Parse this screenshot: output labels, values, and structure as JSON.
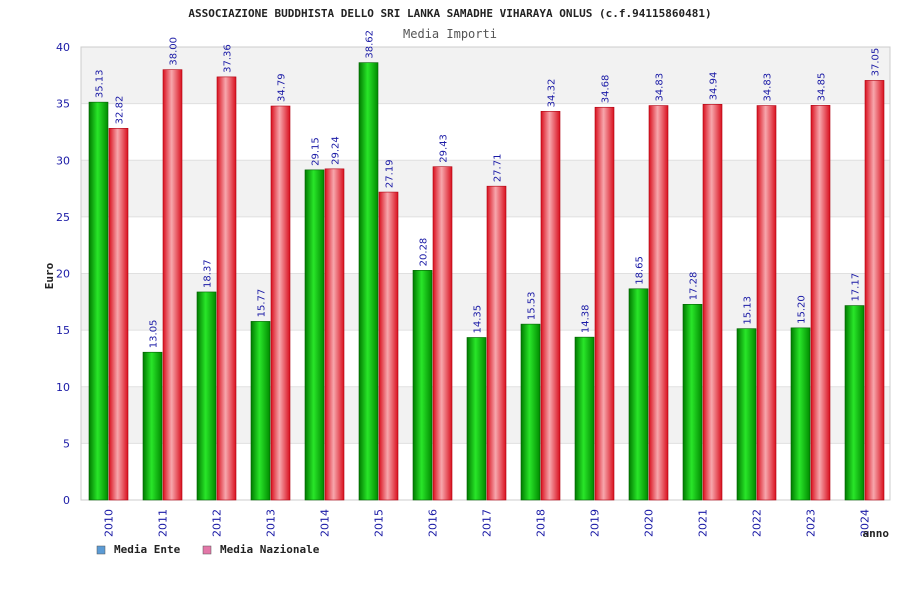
{
  "chart_data": {
    "type": "bar",
    "title": "ASSOCIAZIONE BUDDHISTA DELLO SRI LANKA SAMADHE VIHARAYA ONLUS (c.f.94115860481)",
    "subtitle": "Media Importi",
    "xlabel": "anno",
    "ylabel": "Euro",
    "ylim": [
      0,
      40
    ],
    "yticks": [
      0,
      5,
      10,
      15,
      20,
      25,
      30,
      35,
      40
    ],
    "grid": true,
    "legend_position": "bottom-left",
    "categories": [
      "2010",
      "2011",
      "2012",
      "2013",
      "2014",
      "2015",
      "2016",
      "2017",
      "2018",
      "2019",
      "2020",
      "2021",
      "2022",
      "2023",
      "2024"
    ],
    "series": [
      {
        "name": "Media Ente",
        "color": "#00b000",
        "legend_color": "#5b9bd5",
        "values": [
          35.13,
          13.05,
          18.37,
          15.77,
          29.15,
          38.62,
          20.28,
          14.35,
          15.53,
          14.38,
          18.65,
          17.28,
          15.13,
          15.2,
          17.17
        ],
        "labels": [
          "35.13",
          "13.05",
          "18.37",
          "15.77",
          "29.15",
          "38.62",
          "20.28",
          "14.35",
          "15.53",
          "14.38",
          "18.65",
          "17.28",
          "15.13",
          "15.20",
          "17.17"
        ]
      },
      {
        "name": "Media Nazionale",
        "color": "#e8303c",
        "legend_color": "#e377a8",
        "values": [
          32.82,
          38.0,
          37.36,
          34.79,
          29.24,
          27.19,
          29.43,
          27.71,
          34.32,
          34.68,
          34.83,
          34.94,
          34.83,
          34.85,
          37.05
        ],
        "labels": [
          "32.82",
          "38.00",
          "37.36",
          "34.79",
          "29.24",
          "27.19",
          "29.43",
          "27.71",
          "34.32",
          "34.68",
          "34.83",
          "34.94",
          "34.83",
          "34.85",
          "37.05"
        ]
      }
    ]
  }
}
